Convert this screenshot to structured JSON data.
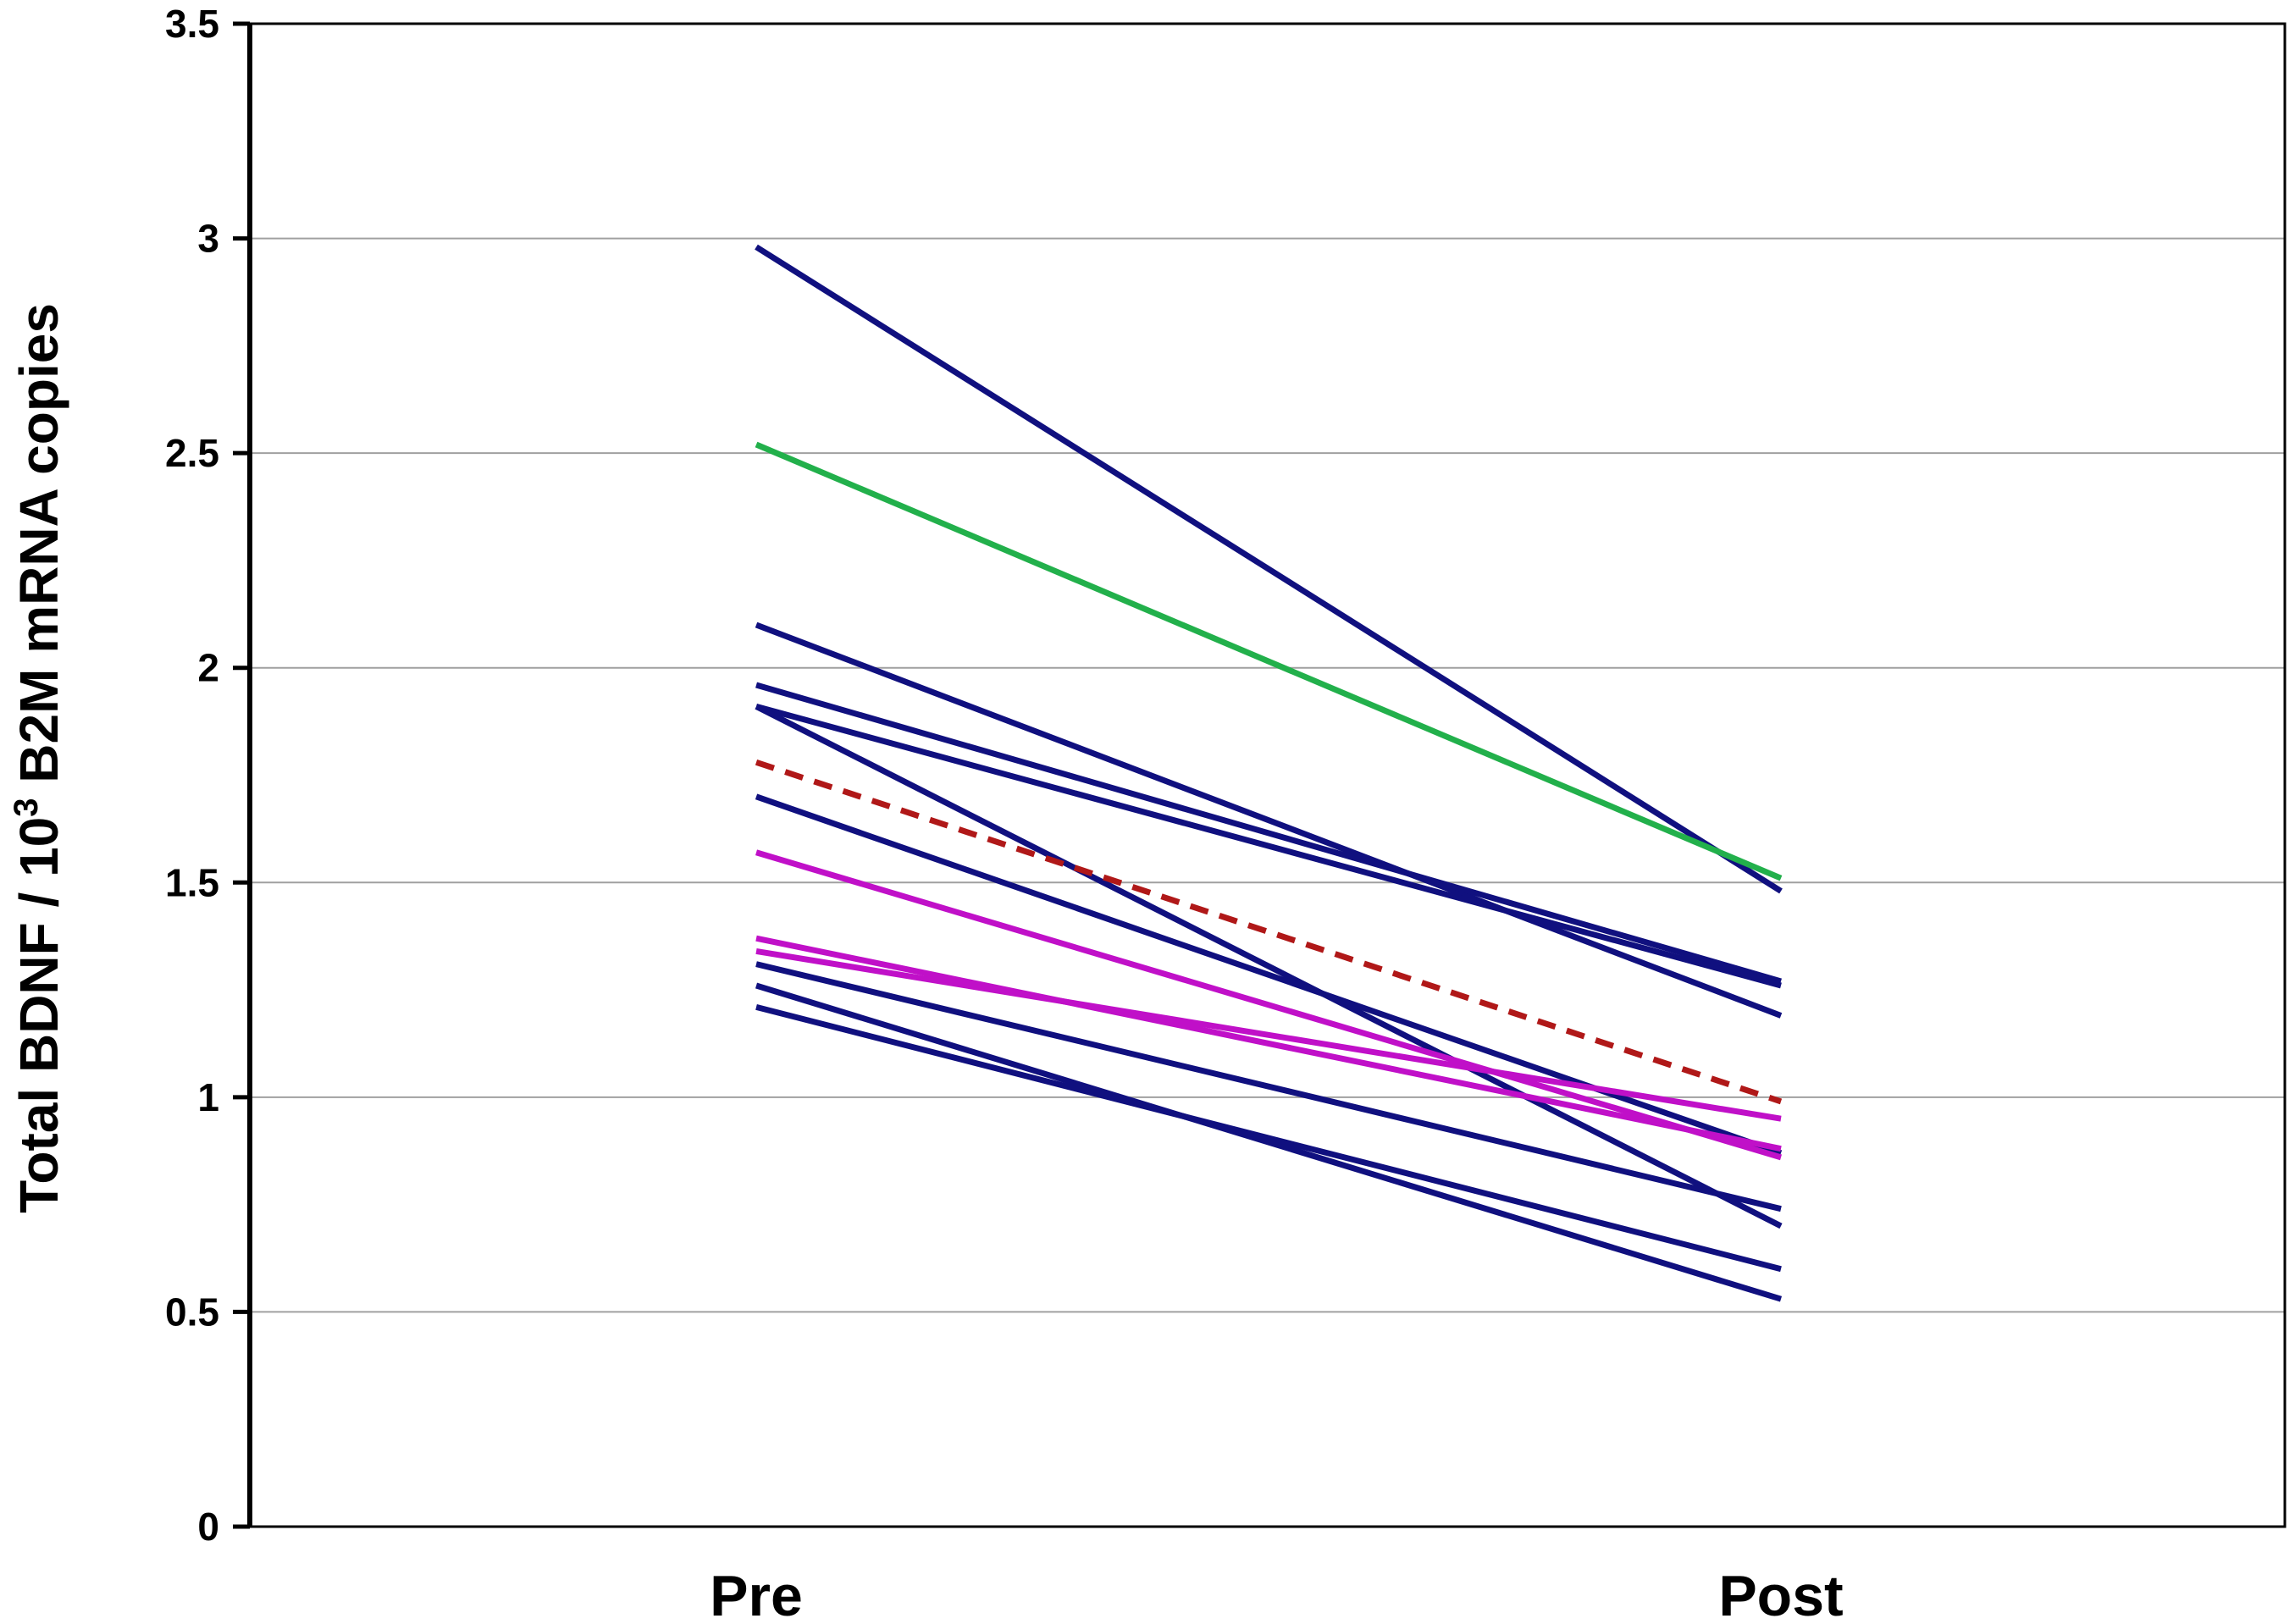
{
  "chart_data": {
    "type": "line",
    "title": "",
    "xlabel": "",
    "ylabel": {
      "prefix": "Total BDNF / 10",
      "superscript": "3",
      "suffix": " B2M mRNA copies"
    },
    "categories": [
      "Pre",
      "Post"
    ],
    "ylim": [
      0,
      3.5
    ],
    "yticks": [
      "0",
      "0.5",
      "1",
      "1.5",
      "2",
      "2.5",
      "3",
      "3.5"
    ],
    "grid": true,
    "legend": "none",
    "colors": {
      "navy": "#10107f",
      "green": "#22b04b",
      "magenta": "#c010c8",
      "red_dashed": "#b01818",
      "grid": "#a0a0a0",
      "axis": "#000000"
    },
    "series": [
      {
        "values": [
          2.98,
          1.48
        ],
        "color": "navy"
      },
      {
        "values": [
          2.52,
          1.51
        ],
        "color": "green"
      },
      {
        "values": [
          2.1,
          1.19
        ],
        "color": "navy"
      },
      {
        "values": [
          1.96,
          1.27
        ],
        "color": "navy"
      },
      {
        "values": [
          1.91,
          1.26
        ],
        "color": "navy"
      },
      {
        "values": [
          1.91,
          0.7
        ],
        "color": "navy"
      },
      {
        "values": [
          1.78,
          0.99
        ],
        "color": "red_dashed",
        "dashed": true
      },
      {
        "values": [
          1.7,
          0.87
        ],
        "color": "navy"
      },
      {
        "values": [
          1.57,
          0.86
        ],
        "color": "magenta"
      },
      {
        "values": [
          1.37,
          0.88
        ],
        "color": "magenta"
      },
      {
        "values": [
          1.34,
          0.95
        ],
        "color": "magenta"
      },
      {
        "values": [
          1.31,
          0.74
        ],
        "color": "navy"
      },
      {
        "values": [
          1.26,
          0.53
        ],
        "color": "navy"
      },
      {
        "values": [
          1.21,
          0.6
        ],
        "color": "navy"
      }
    ]
  }
}
